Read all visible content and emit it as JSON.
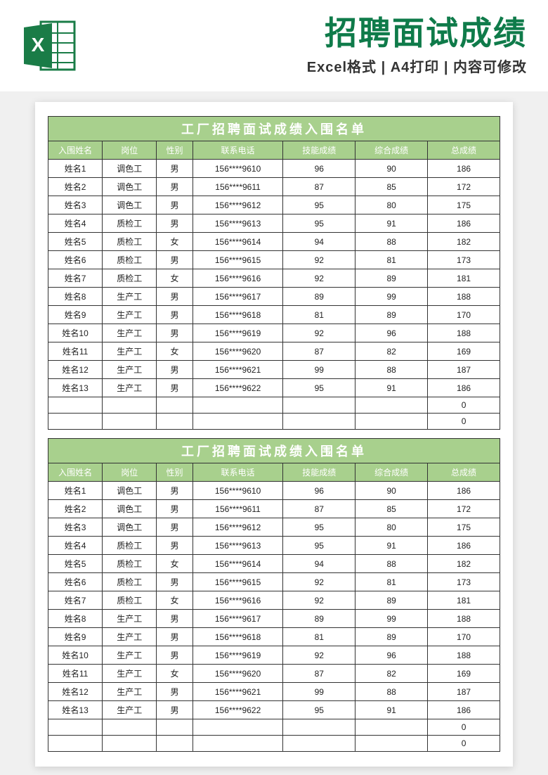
{
  "banner": {
    "title": "招聘面试成绩",
    "subtitle": "Excel格式 | A4打印 | 内容可修改"
  },
  "colors": {
    "brand_green": "#0f7b4a",
    "table_header_bg": "#a8d08d",
    "table_header_text": "#ffffff",
    "border": "#333333",
    "page_bg": "#ffffff",
    "body_bg": "#f0f0f0",
    "text": "#222222"
  },
  "typography": {
    "banner_title_size": 46,
    "banner_sub_size": 20,
    "table_title_size": 18,
    "cell_size": 12
  },
  "table": {
    "title": "工厂招聘面试成绩入围名单",
    "columns": [
      "入围姓名",
      "岗位",
      "性别",
      "联系电话",
      "技能成绩",
      "综合成绩",
      "总成绩"
    ],
    "col_widths_pct": [
      12,
      12,
      8,
      20,
      16,
      16,
      16
    ],
    "rows": [
      [
        "姓名1",
        "调色工",
        "男",
        "156****9610",
        "96",
        "90",
        "186"
      ],
      [
        "姓名2",
        "调色工",
        "男",
        "156****9611",
        "87",
        "85",
        "172"
      ],
      [
        "姓名3",
        "调色工",
        "男",
        "156****9612",
        "95",
        "80",
        "175"
      ],
      [
        "姓名4",
        "质检工",
        "男",
        "156****9613",
        "95",
        "91",
        "186"
      ],
      [
        "姓名5",
        "质检工",
        "女",
        "156****9614",
        "94",
        "88",
        "182"
      ],
      [
        "姓名6",
        "质检工",
        "男",
        "156****9615",
        "92",
        "81",
        "173"
      ],
      [
        "姓名7",
        "质检工",
        "女",
        "156****9616",
        "92",
        "89",
        "181"
      ],
      [
        "姓名8",
        "生产工",
        "男",
        "156****9617",
        "89",
        "99",
        "188"
      ],
      [
        "姓名9",
        "生产工",
        "男",
        "156****9618",
        "81",
        "89",
        "170"
      ],
      [
        "姓名10",
        "生产工",
        "男",
        "156****9619",
        "92",
        "96",
        "188"
      ],
      [
        "姓名11",
        "生产工",
        "女",
        "156****9620",
        "87",
        "82",
        "169"
      ],
      [
        "姓名12",
        "生产工",
        "男",
        "156****9621",
        "99",
        "88",
        "187"
      ],
      [
        "姓名13",
        "生产工",
        "男",
        "156****9622",
        "95",
        "91",
        "186"
      ],
      [
        "",
        "",
        "",
        "",
        "",
        "",
        "0"
      ],
      [
        "",
        "",
        "",
        "",
        "",
        "",
        "0"
      ]
    ]
  },
  "repeat_table_count": 2
}
